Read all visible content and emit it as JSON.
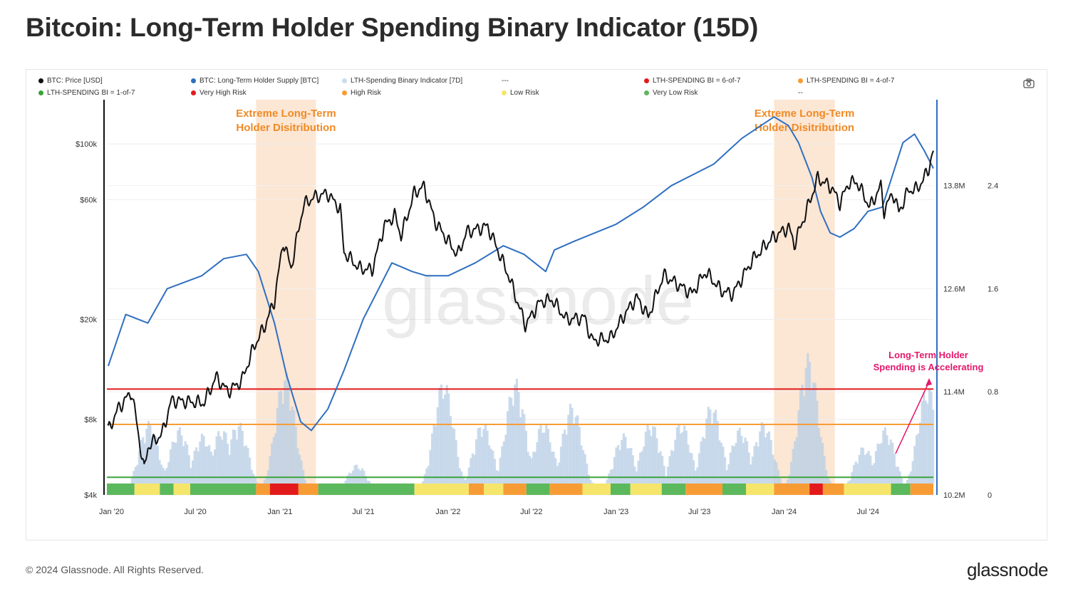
{
  "title": "Bitcoin: Long-Term Holder Spending Binary Indicator (15D)",
  "footer": "© 2024 Glassnode. All Rights Reserved.",
  "logo": "glassnode",
  "watermark": "glassnode",
  "legend": [
    {
      "label": "BTC: Price [USD]",
      "color": "#111111"
    },
    {
      "label": "BTC: Long-Term Holder Supply [BTC]",
      "color": "#2f6fc0"
    },
    {
      "label": "LTH-Spending Binary Indicator [7D]",
      "color": "#c9dcef"
    },
    {
      "label": "---",
      "color": ""
    },
    {
      "label": "LTH-SPENDING BI = 6-of-7",
      "color": "#e31a1c"
    },
    {
      "label": "LTH-SPENDING BI = 4-of-7",
      "color": "#f79c35"
    },
    {
      "label": "LTH-SPENDING BI = 1-of-7",
      "color": "#3aa33a"
    },
    {
      "label": "Very High Risk",
      "color": "#e31a1c"
    },
    {
      "label": "High Risk",
      "color": "#f79c35"
    },
    {
      "label": "Low Risk",
      "color": "#f5e56b"
    },
    {
      "label": "Very Low Risk",
      "color": "#5cb85c"
    },
    {
      "label": "--",
      "color": ""
    }
  ],
  "icons": {
    "camera": "camera-icon"
  },
  "chart_data": {
    "type": "line",
    "title": "Bitcoin: Long-Term Holder Spending Binary Indicator (15D)",
    "x_ticks": [
      "Jan '20",
      "Jul '20",
      "Jan '21",
      "Jul '21",
      "Jan '22",
      "Jul '22",
      "Jan '23",
      "Jul '23",
      "Jan '24",
      "Jul '24"
    ],
    "x_range": [
      "2019-12-22",
      "2024-11-20"
    ],
    "y_left": {
      "scale": "log",
      "ticks": [
        "$4k",
        "$8k",
        "$20k",
        "$60k",
        "$100k"
      ],
      "tick_values": [
        4000,
        8000,
        20000,
        60000,
        100000
      ],
      "range": [
        4000,
        150000
      ]
    },
    "y_mid": {
      "ticks": [
        "10.2M",
        "11.4M",
        "12.6M",
        "13.8M"
      ],
      "tick_values": [
        10.2,
        11.4,
        12.6,
        13.8
      ],
      "range": [
        10.2,
        14.8
      ],
      "unit": "M BTC"
    },
    "y_right": {
      "ticks": [
        "0",
        "0.8",
        "1.6",
        "2.4"
      ],
      "tick_values": [
        0,
        0.8,
        1.6,
        2.4
      ],
      "range": [
        0,
        3.2
      ]
    },
    "threshold_lines": [
      {
        "value": 0.857,
        "color": "#e31a1c",
        "name": "LTH-SPENDING BI = 6-of-7"
      },
      {
        "value": 0.571,
        "color": "#f79c35",
        "name": "LTH-SPENDING BI = 4-of-7"
      },
      {
        "value": 0.143,
        "color": "#3aa33a",
        "name": "LTH-SPENDING BI = 1-of-7"
      }
    ],
    "highlight_zones": [
      {
        "start": "2020-11-10",
        "end": "2021-03-20",
        "label": [
          "Extreme Long-Term",
          "Holder Disitribution"
        ]
      },
      {
        "start": "2023-12-10",
        "end": "2024-04-20",
        "label": [
          "Extreme Long-Term",
          "Holder Disitribution"
        ]
      }
    ],
    "annotation": {
      "text": [
        "Long-Term Holder",
        "Spending is Accelerating"
      ],
      "color": "#e5186b"
    },
    "price_series": {
      "name": "BTC: Price [USD]",
      "dates": [
        "2019-12-25",
        "2020-01-15",
        "2020-02-14",
        "2020-03-12",
        "2020-03-20",
        "2020-04-20",
        "2020-05-10",
        "2020-06-15",
        "2020-07-20",
        "2020-08-15",
        "2020-09-10",
        "2020-10-10",
        "2020-11-05",
        "2020-12-01",
        "2020-12-20",
        "2021-01-08",
        "2021-01-25",
        "2021-02-21",
        "2021-03-13",
        "2021-04-14",
        "2021-05-12",
        "2021-05-20",
        "2021-06-22",
        "2021-07-20",
        "2021-08-15",
        "2021-09-07",
        "2021-09-21",
        "2021-10-20",
        "2021-11-10",
        "2021-12-04",
        "2022-01-22",
        "2022-02-10",
        "2022-03-28",
        "2022-05-12",
        "2022-06-18",
        "2022-07-20",
        "2022-08-15",
        "2022-09-15",
        "2022-10-25",
        "2022-11-09",
        "2022-12-20",
        "2023-01-20",
        "2023-02-15",
        "2023-03-12",
        "2023-04-14",
        "2023-06-15",
        "2023-07-14",
        "2023-08-18",
        "2023-09-11",
        "2023-10-24",
        "2023-12-05",
        "2024-01-11",
        "2024-01-23",
        "2024-02-15",
        "2024-03-14",
        "2024-04-13",
        "2024-05-01",
        "2024-05-20",
        "2024-06-07",
        "2024-07-05",
        "2024-07-29",
        "2024-08-05",
        "2024-08-24",
        "2024-09-06",
        "2024-09-27",
        "2024-10-15",
        "2024-10-29",
        "2024-11-10",
        "2024-11-20"
      ],
      "values": [
        7200,
        8800,
        10300,
        5000,
        6200,
        7000,
        9500,
        9400,
        9300,
        11800,
        10300,
        11400,
        15500,
        19200,
        23800,
        41000,
        32000,
        57000,
        61000,
        63500,
        55000,
        37000,
        32000,
        31500,
        47000,
        52000,
        43000,
        64000,
        67500,
        49000,
        36000,
        44500,
        47000,
        30000,
        19000,
        23500,
        24000,
        20000,
        20300,
        16500,
        16800,
        21000,
        24500,
        20500,
        30000,
        25300,
        31000,
        26000,
        25200,
        34500,
        42000,
        46500,
        39800,
        52000,
        73000,
        67000,
        58000,
        70000,
        70500,
        56000,
        68000,
        54000,
        64000,
        53500,
        65500,
        66000,
        72000,
        80000,
        94000
      ]
    },
    "supply_series": {
      "name": "BTC: Long-Term Holder Supply [BTC]",
      "dates": [
        "2019-12-25",
        "2020-02-01",
        "2020-03-20",
        "2020-05-01",
        "2020-07-15",
        "2020-09-01",
        "2020-10-20",
        "2020-11-15",
        "2020-12-20",
        "2021-01-15",
        "2021-02-15",
        "2021-03-10",
        "2021-04-15",
        "2021-05-20",
        "2021-07-01",
        "2021-09-01",
        "2021-10-15",
        "2021-11-15",
        "2022-01-01",
        "2022-03-01",
        "2022-05-01",
        "2022-06-15",
        "2022-08-01",
        "2022-08-20",
        "2022-10-01",
        "2023-01-01",
        "2023-03-01",
        "2023-05-01",
        "2023-08-01",
        "2023-10-01",
        "2023-12-10",
        "2024-01-10",
        "2024-02-01",
        "2024-03-01",
        "2024-03-20",
        "2024-04-10",
        "2024-05-01",
        "2024-06-01",
        "2024-07-01",
        "2024-08-01",
        "2024-09-15",
        "2024-10-10",
        "2024-11-01",
        "2024-11-20"
      ],
      "values": [
        11.7,
        12.3,
        12.2,
        12.6,
        12.75,
        12.95,
        13.0,
        12.8,
        12.2,
        11.6,
        11.05,
        10.95,
        11.2,
        11.65,
        12.25,
        12.9,
        12.8,
        12.75,
        12.75,
        12.9,
        13.1,
        13.0,
        12.8,
        13.05,
        13.15,
        13.35,
        13.55,
        13.8,
        14.05,
        14.35,
        14.6,
        14.5,
        14.3,
        13.9,
        13.5,
        13.25,
        13.2,
        13.3,
        13.5,
        13.55,
        14.3,
        14.4,
        14.2,
        14.0
      ]
    },
    "lth_indicator_bars": {
      "name": "LTH-Spending Binary Indicator [7D]",
      "note": "daily vertical bars, value 0 to 1.4 (right axis)",
      "clusters": [
        {
          "center": "2020-03-20",
          "peak": 0.6
        },
        {
          "center": "2020-05-25",
          "peak": 0.55
        },
        {
          "center": "2020-07-15",
          "peak": 0.5
        },
        {
          "center": "2020-08-25",
          "peak": 0.55
        },
        {
          "center": "2020-09-30",
          "peak": 0.6
        },
        {
          "center": "2021-01-10",
          "peak": 1.0
        },
        {
          "center": "2021-06-15",
          "peak": 0.25
        },
        {
          "center": "2021-12-20",
          "peak": 0.95
        },
        {
          "center": "2022-03-15",
          "peak": 0.6
        },
        {
          "center": "2022-05-25",
          "peak": 0.95
        },
        {
          "center": "2022-07-25",
          "peak": 0.6
        },
        {
          "center": "2022-09-25",
          "peak": 0.75
        },
        {
          "center": "2023-01-15",
          "peak": 0.5
        },
        {
          "center": "2023-03-15",
          "peak": 0.6
        },
        {
          "center": "2023-05-20",
          "peak": 0.6
        },
        {
          "center": "2023-07-25",
          "peak": 0.75
        },
        {
          "center": "2023-09-25",
          "peak": 0.55
        },
        {
          "center": "2023-11-15",
          "peak": 0.6
        },
        {
          "center": "2024-02-20",
          "peak": 1.15
        },
        {
          "center": "2024-06-20",
          "peak": 0.4
        },
        {
          "center": "2024-08-05",
          "peak": 0.55
        },
        {
          "center": "2024-11-05",
          "peak": 0.9
        }
      ]
    },
    "risk_band": {
      "name": "Risk band",
      "segments": [
        {
          "start": "2019-12-22",
          "end": "2020-02-20",
          "level": "Very Low Risk"
        },
        {
          "start": "2020-02-20",
          "end": "2020-04-15",
          "level": "Low Risk"
        },
        {
          "start": "2020-04-15",
          "end": "2020-05-15",
          "level": "Very Low Risk"
        },
        {
          "start": "2020-05-15",
          "end": "2020-06-20",
          "level": "Low Risk"
        },
        {
          "start": "2020-06-20",
          "end": "2020-11-10",
          "level": "Very Low Risk"
        },
        {
          "start": "2020-11-10",
          "end": "2020-12-10",
          "level": "High Risk"
        },
        {
          "start": "2020-12-10",
          "end": "2021-02-10",
          "level": "Very High Risk"
        },
        {
          "start": "2021-02-10",
          "end": "2021-03-25",
          "level": "High Risk"
        },
        {
          "start": "2021-03-25",
          "end": "2021-10-20",
          "level": "Very Low Risk"
        },
        {
          "start": "2021-10-20",
          "end": "2022-02-15",
          "level": "Low Risk"
        },
        {
          "start": "2022-02-15",
          "end": "2022-03-20",
          "level": "High Risk"
        },
        {
          "start": "2022-03-20",
          "end": "2022-05-01",
          "level": "Low Risk"
        },
        {
          "start": "2022-05-01",
          "end": "2022-06-20",
          "level": "High Risk"
        },
        {
          "start": "2022-06-20",
          "end": "2022-08-10",
          "level": "Very Low Risk"
        },
        {
          "start": "2022-08-10",
          "end": "2022-10-20",
          "level": "High Risk"
        },
        {
          "start": "2022-10-20",
          "end": "2022-12-20",
          "level": "Low Risk"
        },
        {
          "start": "2022-12-20",
          "end": "2023-02-01",
          "level": "Very Low Risk"
        },
        {
          "start": "2023-02-01",
          "end": "2023-04-10",
          "level": "Low Risk"
        },
        {
          "start": "2023-04-10",
          "end": "2023-06-01",
          "level": "Very Low Risk"
        },
        {
          "start": "2023-06-01",
          "end": "2023-08-20",
          "level": "High Risk"
        },
        {
          "start": "2023-08-20",
          "end": "2023-10-10",
          "level": "Very Low Risk"
        },
        {
          "start": "2023-10-10",
          "end": "2023-12-10",
          "level": "Low Risk"
        },
        {
          "start": "2023-12-10",
          "end": "2024-02-25",
          "level": "High Risk"
        },
        {
          "start": "2024-02-25",
          "end": "2024-03-25",
          "level": "Very High Risk"
        },
        {
          "start": "2024-03-25",
          "end": "2024-05-10",
          "level": "High Risk"
        },
        {
          "start": "2024-05-10",
          "end": "2024-08-20",
          "level": "Low Risk"
        },
        {
          "start": "2024-08-20",
          "end": "2024-10-01",
          "level": "Very Low Risk"
        },
        {
          "start": "2024-10-01",
          "end": "2024-11-20",
          "level": "High Risk"
        }
      ]
    }
  }
}
